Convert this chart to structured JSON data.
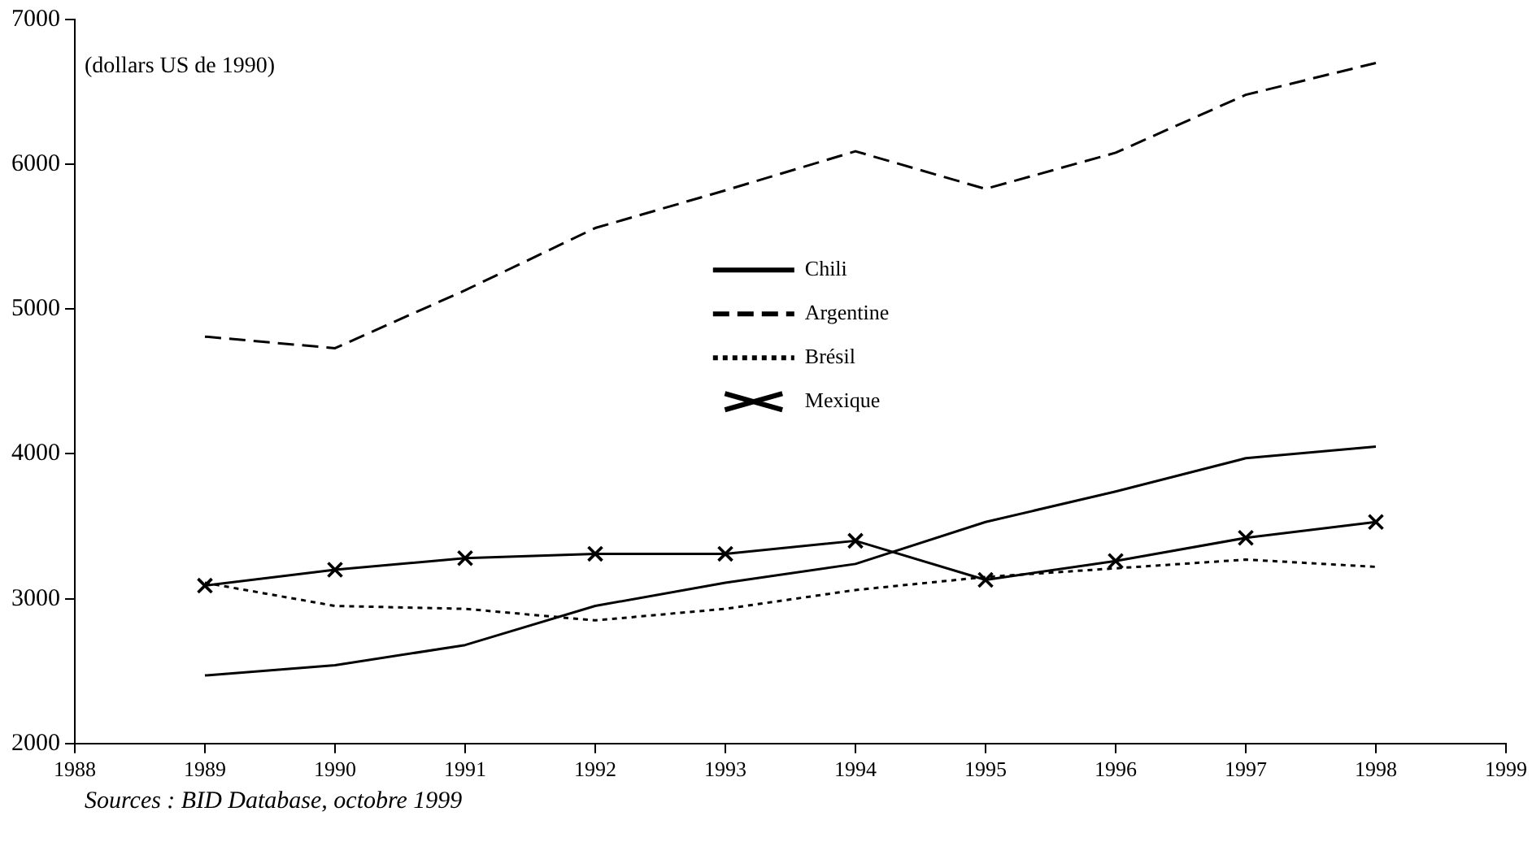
{
  "chart_data": {
    "type": "line",
    "x": [
      1989,
      1990,
      1991,
      1992,
      1993,
      1994,
      1995,
      1996,
      1997,
      1998
    ],
    "xlim": [
      1988,
      1999
    ],
    "xticks": [
      1988,
      1989,
      1990,
      1991,
      1992,
      1993,
      1994,
      1995,
      1996,
      1997,
      1998,
      1999
    ],
    "ylim": [
      2000,
      7000
    ],
    "yticks": [
      2000,
      3000,
      4000,
      5000,
      6000,
      7000
    ],
    "grid": false,
    "legend": "center",
    "series": [
      {
        "name": "Chili",
        "color": "#000000",
        "line_style": "solid",
        "marker": "none",
        "values": [
          2470,
          2540,
          2680,
          2950,
          3110,
          3240,
          3530,
          3740,
          3970,
          4050
        ]
      },
      {
        "name": "Argentine",
        "color": "#000000",
        "line_style": "dashed",
        "marker": "none",
        "values": [
          4810,
          4730,
          5130,
          5560,
          5820,
          6090,
          5830,
          6080,
          6480,
          6700
        ]
      },
      {
        "name": "Brésil",
        "color": "#000000",
        "line_style": "dotted",
        "marker": "none",
        "values": [
          3110,
          2950,
          2930,
          2850,
          2930,
          3060,
          3150,
          3210,
          3270,
          3220
        ]
      },
      {
        "name": "Mexique",
        "color": "#000000",
        "line_style": "solid",
        "marker": "cross",
        "values": [
          3090,
          3200,
          3280,
          3310,
          3310,
          3400,
          3130,
          3260,
          3420,
          3530
        ]
      }
    ],
    "annotations": [
      "(dollars US de 1990)",
      "Sources : BID Database, octobre 1999"
    ]
  }
}
